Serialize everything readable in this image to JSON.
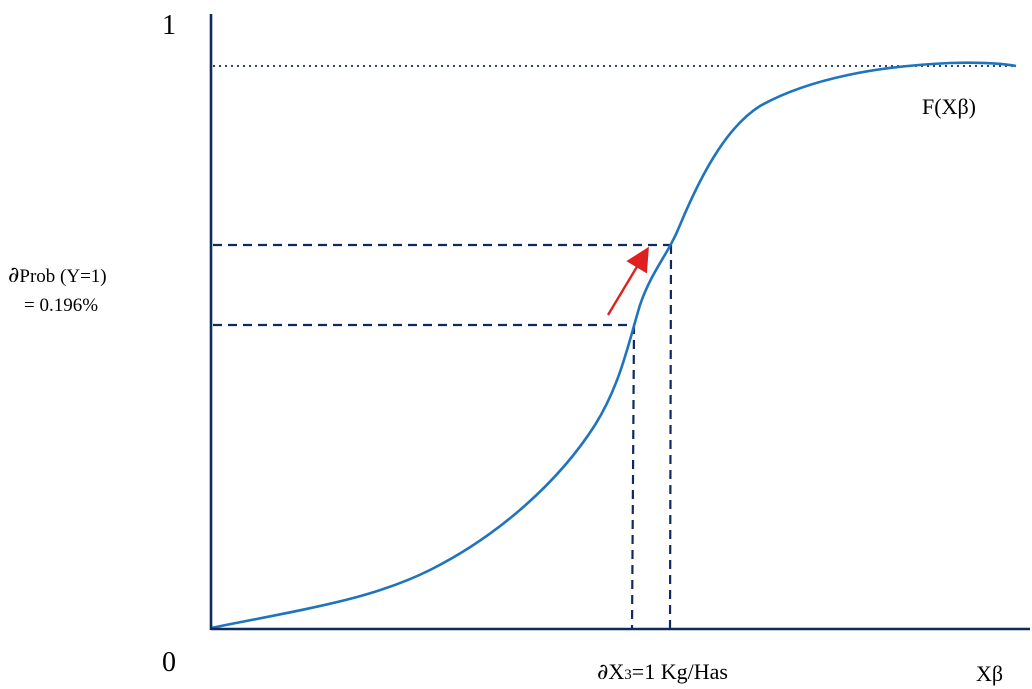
{
  "diagram": {
    "y_max_label": "1",
    "origin_label": "0",
    "curve_label": "F(Xβ)",
    "x_axis_label": "Xβ",
    "y_change_label": {
      "partial": "∂",
      "text": "Prob (Y=1)",
      "value": "= 0.196%"
    },
    "x_change_label": {
      "partial": "∂",
      "var": "X",
      "subscript": "3",
      "rest": "=1 Kg/Has"
    },
    "colors": {
      "axis": "#0f2a5e",
      "curve": "#1f74bd",
      "guide": "#0f2a5e",
      "arrow": "#e02020"
    }
  }
}
